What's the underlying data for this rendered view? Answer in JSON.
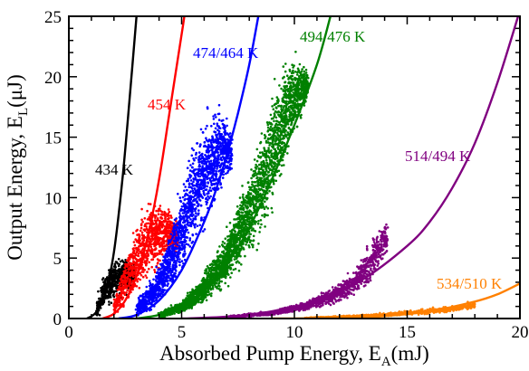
{
  "chart_data": {
    "type": "scatter",
    "xlabel": {
      "main": "Absorbed Pump Energy, E",
      "sub": "A",
      "unit": "(mJ)"
    },
    "ylabel": {
      "main": "Output Energy, E",
      "sub": "L",
      "unit": "(μJ)"
    },
    "xlim": [
      0,
      20
    ],
    "ylim": [
      0,
      25
    ],
    "xticks": [
      0,
      5,
      10,
      15,
      20
    ],
    "yticks": [
      0,
      5,
      10,
      15,
      20,
      25
    ],
    "x_minor_step": 1,
    "y_minor_step": 1,
    "grid": false,
    "legend": "none (series labelled inline)",
    "series": [
      {
        "name": "434 K",
        "color": "#000000",
        "fit_curve": [
          [
            0.8,
            0
          ],
          [
            1.2,
            0.5
          ],
          [
            1.6,
            2
          ],
          [
            2.0,
            5.5
          ],
          [
            2.4,
            12
          ],
          [
            2.8,
            20.5
          ],
          [
            3.0,
            25
          ]
        ],
        "scatter_envelope": [
          [
            1.2,
            0,
            0.8
          ],
          [
            1.5,
            0.3,
            3.8
          ],
          [
            1.8,
            1.0,
            4.8
          ],
          [
            2.2,
            1.5,
            5.3
          ],
          [
            2.6,
            1.8,
            5.4
          ],
          [
            2.9,
            2.2,
            5.2
          ]
        ],
        "scatter_density": 650
      },
      {
        "name": "454 K",
        "color": "#ff0000",
        "fit_curve": [
          [
            1.5,
            0
          ],
          [
            2.0,
            0.4
          ],
          [
            2.5,
            1.5
          ],
          [
            3.0,
            3.5
          ],
          [
            3.5,
            6.8
          ],
          [
            4.0,
            11.5
          ],
          [
            4.5,
            17.5
          ],
          [
            5.0,
            23.5
          ],
          [
            5.12,
            25
          ]
        ],
        "scatter_envelope": [
          [
            2.0,
            0,
            1.5
          ],
          [
            2.5,
            0.6,
            5.5
          ],
          [
            3.0,
            1.5,
            8.5
          ],
          [
            3.5,
            2.5,
            10.0
          ],
          [
            4.0,
            3.5,
            10.5
          ],
          [
            4.4,
            4.2,
            10.0
          ],
          [
            4.8,
            4.8,
            8.5
          ]
        ],
        "scatter_density": 1000
      },
      {
        "name": "474/464 K",
        "color": "#0000ff",
        "fit_curve": [
          [
            2.2,
            0
          ],
          [
            3.0,
            0.3
          ],
          [
            4.0,
            1.5
          ],
          [
            5.0,
            4.0
          ],
          [
            6.0,
            8.0
          ],
          [
            6.5,
            10.5
          ],
          [
            7.0,
            13.5
          ],
          [
            7.5,
            17.0
          ],
          [
            8.0,
            21.0
          ],
          [
            8.4,
            25
          ]
        ],
        "scatter_envelope": [
          [
            3.0,
            0,
            1.5
          ],
          [
            3.8,
            0.5,
            4.0
          ],
          [
            4.5,
            1.5,
            8.0
          ],
          [
            5.2,
            3.5,
            13.5
          ],
          [
            5.8,
            6.0,
            17.0
          ],
          [
            6.3,
            8.0,
            18.2
          ],
          [
            6.8,
            10.0,
            18.2
          ],
          [
            7.2,
            11.5,
            16.0
          ]
        ],
        "scatter_density": 1800
      },
      {
        "name": "494/476 K",
        "color": "#008000",
        "fit_curve": [
          [
            3.0,
            0
          ],
          [
            4.0,
            0.3
          ],
          [
            5.0,
            1.0
          ],
          [
            6.0,
            2.3
          ],
          [
            7.0,
            4.5
          ],
          [
            8.0,
            7.5
          ],
          [
            9.0,
            11.5
          ],
          [
            10.0,
            16.0
          ],
          [
            11.0,
            21.0
          ],
          [
            11.6,
            25
          ]
        ],
        "scatter_envelope": [
          [
            4.0,
            0,
            0.6
          ],
          [
            5.0,
            0.3,
            1.5
          ],
          [
            6.0,
            1.0,
            4.0
          ],
          [
            7.0,
            2.5,
            7.5
          ],
          [
            8.0,
            4.5,
            13.0
          ],
          [
            8.7,
            6.5,
            17.5
          ],
          [
            9.3,
            9.5,
            21.0
          ],
          [
            9.8,
            13.0,
            22.5
          ],
          [
            10.3,
            16.0,
            22.0
          ],
          [
            10.6,
            18.0,
            20.5
          ]
        ],
        "scatter_density": 3000
      },
      {
        "name": "514/494 K",
        "color": "#800080",
        "fit_curve": [
          [
            5.0,
            0
          ],
          [
            7.0,
            0.15
          ],
          [
            9.0,
            0.6
          ],
          [
            11.0,
            1.5
          ],
          [
            13.0,
            3.2
          ],
          [
            15.0,
            6.0
          ],
          [
            16.0,
            8.0
          ],
          [
            17.0,
            10.8
          ],
          [
            18.0,
            14.5
          ],
          [
            19.0,
            19.5
          ],
          [
            20.0,
            25.5
          ]
        ],
        "scatter_envelope": [
          [
            7.0,
            0,
            0.2
          ],
          [
            9.0,
            0.2,
            0.7
          ],
          [
            10.5,
            0.6,
            1.5
          ],
          [
            11.5,
            0.9,
            2.5
          ],
          [
            12.5,
            1.5,
            4.0
          ],
          [
            13.2,
            2.2,
            6.0
          ],
          [
            13.7,
            3.5,
            8.0
          ],
          [
            14.1,
            5.0,
            8.5
          ]
        ],
        "scatter_density": 1600
      },
      {
        "name": "534/510 K",
        "color": "#ff8000",
        "fit_curve": [
          [
            9.0,
            0
          ],
          [
            12.0,
            0.05
          ],
          [
            14.0,
            0.2
          ],
          [
            16.0,
            0.6
          ],
          [
            18.0,
            1.4
          ],
          [
            19.0,
            2.0
          ],
          [
            20.0,
            2.9
          ]
        ],
        "scatter_envelope": [
          [
            10.5,
            0,
            0.1
          ],
          [
            12.0,
            0,
            0.25
          ],
          [
            14.0,
            0.1,
            0.5
          ],
          [
            15.5,
            0.3,
            0.8
          ],
          [
            17.0,
            0.5,
            1.1
          ],
          [
            18.0,
            0.7,
            1.5
          ]
        ],
        "scatter_density": 800
      }
    ]
  }
}
